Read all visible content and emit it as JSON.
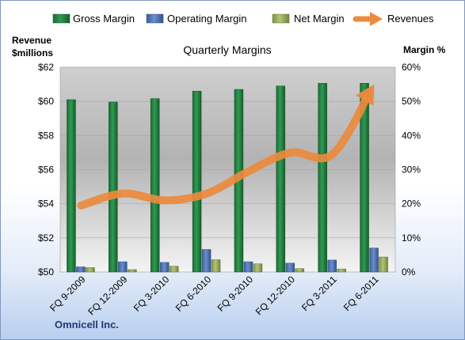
{
  "chart_data": {
    "type": "bar",
    "title": "Quarterly Margins",
    "company": "Omnicell Inc.",
    "left_axis_title_line1": "Revenue",
    "left_axis_title_line2": "$millions",
    "right_axis_title": "Margin %",
    "categories": [
      "FQ 9-2009",
      "FQ 12-2009",
      "FQ 3-2010",
      "FQ 6-2010",
      "FQ 9-2010",
      "FQ 12-2010",
      "FQ 3-2011",
      "FQ 6-2011"
    ],
    "left_ylim": [
      50,
      62
    ],
    "left_ticks": [
      "$50",
      "$52",
      "$54",
      "$56",
      "$58",
      "$60",
      "$62"
    ],
    "right_ylim": [
      0,
      60
    ],
    "right_ticks": [
      "0%",
      "10%",
      "20%",
      "30%",
      "40%",
      "50%",
      "60%"
    ],
    "legend_position": "top",
    "series": [
      {
        "name": "Gross Margin",
        "type": "bar",
        "axis": "right",
        "color": "#1f7a3c",
        "values": [
          50.5,
          49.8,
          50.8,
          53.0,
          53.5,
          54.5,
          55.3,
          55.3
        ]
      },
      {
        "name": "Operating Margin",
        "type": "bar",
        "axis": "right",
        "color": "#4a6fae",
        "values": [
          1.5,
          3.0,
          2.8,
          6.6,
          3.0,
          2.6,
          3.5,
          7.0
        ]
      },
      {
        "name": "Net Margin",
        "type": "bar",
        "axis": "right",
        "color": "#93a85a",
        "values": [
          1.3,
          0.7,
          1.7,
          3.6,
          2.4,
          1.0,
          0.9,
          4.4
        ]
      },
      {
        "name": "Revenues",
        "type": "line",
        "axis": "left",
        "color": "#ec8a3d",
        "values": [
          53.9,
          54.6,
          54.2,
          54.6,
          55.9,
          57.0,
          56.9,
          61.0
        ]
      }
    ]
  }
}
